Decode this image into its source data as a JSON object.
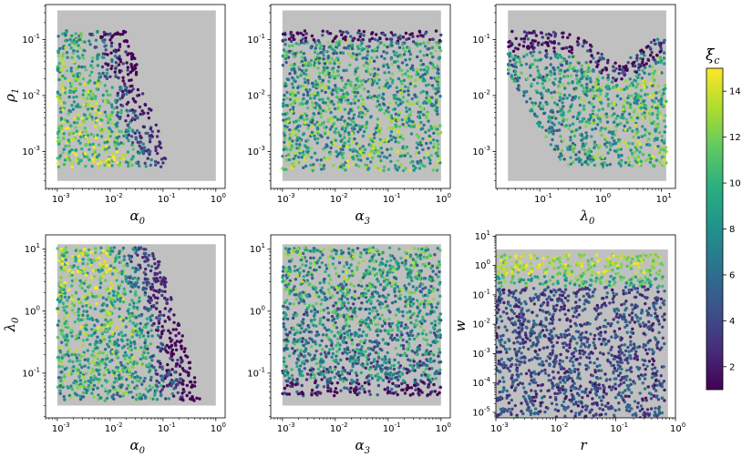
{
  "figure": {
    "colorbar": {
      "label_main": "ξ",
      "label_sub": "c",
      "ticks": [
        "2",
        "4",
        "6",
        "8",
        "10",
        "12",
        "14"
      ],
      "tick_values": [
        2,
        4,
        6,
        8,
        10,
        12,
        14
      ],
      "range": [
        1,
        15
      ],
      "colormap": "viridis"
    },
    "panels": [
      {
        "xlabel": "α",
        "xsub": "0",
        "ylabel": "ρ",
        "ysub": "1"
      },
      {
        "xlabel": "α",
        "xsub": "3",
        "ylabel": "",
        "ysub": ""
      },
      {
        "xlabel": "λ",
        "xsub": "0",
        "ylabel": "",
        "ysub": ""
      },
      {
        "xlabel": "α",
        "xsub": "0",
        "ylabel": "λ",
        "ysub": "0"
      },
      {
        "xlabel": "α",
        "xsub": "3",
        "ylabel": "",
        "ysub": ""
      },
      {
        "xlabel": "r",
        "xsub": "",
        "ylabel": "w",
        "ysub": ""
      }
    ]
  },
  "chart_data": [
    {
      "type": "scatter",
      "xlabel": "α0",
      "ylabel": "ρ1",
      "xscale": "log",
      "yscale": "log",
      "x_ticks": [
        {
          "e": "-3"
        },
        {
          "e": "-2"
        },
        {
          "e": "-1"
        },
        {
          "e": "0"
        }
      ],
      "y_ticks": [
        {
          "e": "-3"
        },
        {
          "e": "-2"
        },
        {
          "e": "-1"
        }
      ],
      "xlim": [
        0.0006,
        1.5
      ],
      "ylim": [
        0.00022,
        0.42
      ],
      "background_region": {
        "color": "#c0c0c0",
        "x": [
          0.001,
          1.0
        ],
        "y": [
          0.0003,
          0.33
        ]
      },
      "color_by": "ξc",
      "description_note": "colored points fill x from 0.001 to ~0.1–0.6, y from 6e-4 to 0.18; dark (ξc≈1–2) near the upper-right boundary"
    },
    {
      "type": "scatter",
      "xlabel": "α3",
      "ylabel": "",
      "xscale": "log",
      "yscale": "log",
      "x_ticks": [
        {
          "e": "-3"
        },
        {
          "e": "-2"
        },
        {
          "e": "-1"
        },
        {
          "e": "0"
        }
      ],
      "y_ticks": [
        {
          "e": "-3"
        },
        {
          "e": "-2"
        },
        {
          "e": "-1"
        }
      ],
      "xlim": [
        0.0006,
        1.5
      ],
      "ylim": [
        0.00022,
        0.42
      ],
      "background_region": {
        "color": "#c0c0c0",
        "x": [
          0.001,
          1.0
        ],
        "y": [
          0.0003,
          0.33
        ]
      },
      "color_by": "ξc"
    },
    {
      "type": "scatter",
      "xlabel": "λ0",
      "ylabel": "",
      "xscale": "log",
      "yscale": "log",
      "x_ticks": [
        {
          "e": "-1"
        },
        {
          "e": "0"
        },
        {
          "e": "1"
        }
      ],
      "y_ticks": [
        {
          "e": "-3"
        },
        {
          "e": "-2"
        },
        {
          "e": "-1"
        }
      ],
      "xlim": [
        0.019,
        17
      ],
      "ylim": [
        0.00022,
        0.42
      ],
      "background_region": {
        "color": "#c0c0c0",
        "x": [
          0.03,
          12
        ],
        "y": [
          0.0003,
          0.33
        ]
      },
      "color_by": "ξc"
    },
    {
      "type": "scatter",
      "xlabel": "α0",
      "ylabel": "λ0",
      "xscale": "log",
      "yscale": "log",
      "x_ticks": [
        {
          "e": "-3"
        },
        {
          "e": "-2"
        },
        {
          "e": "-1"
        },
        {
          "e": "0"
        }
      ],
      "y_ticks": [
        {
          "e": "-1"
        },
        {
          "e": "0"
        },
        {
          "e": "1"
        }
      ],
      "xlim": [
        0.0006,
        1.5
      ],
      "ylim": [
        0.019,
        17
      ],
      "background_region": {
        "color": "#c0c0c0",
        "x": [
          0.001,
          1.0
        ],
        "y": [
          0.03,
          12
        ]
      },
      "color_by": "ξc"
    },
    {
      "type": "scatter",
      "xlabel": "α3",
      "ylabel": "",
      "xscale": "log",
      "yscale": "log",
      "x_ticks": [
        {
          "e": "-3"
        },
        {
          "e": "-2"
        },
        {
          "e": "-1"
        },
        {
          "e": "0"
        }
      ],
      "y_ticks": [
        {
          "e": "-1"
        },
        {
          "e": "0"
        },
        {
          "e": "1"
        }
      ],
      "xlim": [
        0.0006,
        1.5
      ],
      "ylim": [
        0.019,
        17
      ],
      "background_region": {
        "color": "#c0c0c0",
        "x": [
          0.001,
          1.0
        ],
        "y": [
          0.03,
          12
        ]
      },
      "color_by": "ξc"
    },
    {
      "type": "scatter",
      "xlabel": "r",
      "ylabel": "w",
      "xscale": "log",
      "yscale": "log",
      "x_ticks": [
        {
          "e": "-3"
        },
        {
          "e": "-2"
        },
        {
          "e": "-1"
        },
        {
          "e": "0"
        }
      ],
      "y_ticks": [
        {
          "e": "-5"
        },
        {
          "e": "-4"
        },
        {
          "e": "-3"
        },
        {
          "e": "-2"
        },
        {
          "e": "-1"
        },
        {
          "e": "0"
        },
        {
          "e": "1"
        }
      ],
      "xlim": [
        0.001,
        1.0
      ],
      "ylim": [
        6.5e-06,
        11
      ],
      "background_region": {
        "color": "#c0c0c0",
        "x": [
          0.001,
          0.75
        ],
        "y": [
          6.5e-06,
          3.5
        ]
      },
      "color_by": "ξc",
      "description_note": "bright (ξc≈12–14) band at w≈1–3; points fill w below; boundary curves near r≈0.75"
    }
  ]
}
